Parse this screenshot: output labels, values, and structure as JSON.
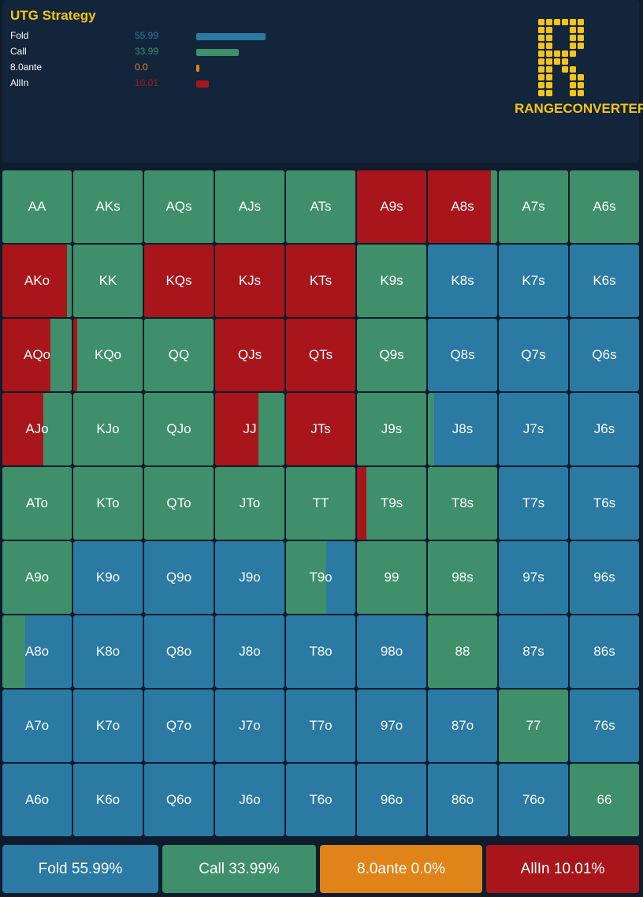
{
  "colors": {
    "fold": "#2a7aa3",
    "call": "#3e8f6a",
    "ante": "#e08419",
    "allin": "#a8161b",
    "title": "#f5c419"
  },
  "header": {
    "title": "UTG Strategy",
    "legend": [
      {
        "name": "Fold",
        "value": "55.99",
        "pct": 55.99,
        "color": "#2a7aa3"
      },
      {
        "name": "Call",
        "value": "33.99",
        "pct": 33.99,
        "color": "#3e8f6a"
      },
      {
        "name": "8.0ante",
        "value": "0.0",
        "pct": 0.0,
        "color": "#e08419"
      },
      {
        "name": "AllIn",
        "value": "10.01",
        "pct": 10.01,
        "color": "#a8161b"
      }
    ]
  },
  "logo": {
    "icon": "letter-r-dot-matrix-logo",
    "text": "RANGECONVERTER"
  },
  "grid": {
    "rows": [
      [
        {
          "hand": "AA",
          "allin": 0,
          "call": 100
        },
        {
          "hand": "AKs",
          "allin": 0,
          "call": 100
        },
        {
          "hand": "AQs",
          "allin": 0,
          "call": 100
        },
        {
          "hand": "AJs",
          "allin": 0,
          "call": 100
        },
        {
          "hand": "ATs",
          "allin": 0,
          "call": 100
        },
        {
          "hand": "A9s",
          "allin": 100,
          "call": 0
        },
        {
          "hand": "A8s",
          "allin": 91,
          "call": 9
        },
        {
          "hand": "A7s",
          "allin": 0,
          "call": 100
        },
        {
          "hand": "A6s",
          "allin": 0,
          "call": 100
        }
      ],
      [
        {
          "hand": "AKo",
          "allin": 93,
          "call": 7
        },
        {
          "hand": "KK",
          "allin": 0,
          "call": 100
        },
        {
          "hand": "KQs",
          "allin": 100,
          "call": 0
        },
        {
          "hand": "KJs",
          "allin": 100,
          "call": 0
        },
        {
          "hand": "KTs",
          "allin": 100,
          "call": 0
        },
        {
          "hand": "K9s",
          "allin": 0,
          "call": 100
        },
        {
          "hand": "K8s",
          "allin": 0,
          "call": 0
        },
        {
          "hand": "K7s",
          "allin": 0,
          "call": 0
        },
        {
          "hand": "K6s",
          "allin": 0,
          "call": 0
        }
      ],
      [
        {
          "hand": "AQo",
          "allin": 69,
          "call": 31
        },
        {
          "hand": "KQo",
          "allin": 6,
          "call": 94
        },
        {
          "hand": "QQ",
          "allin": 0,
          "call": 100
        },
        {
          "hand": "QJs",
          "allin": 100,
          "call": 0
        },
        {
          "hand": "QTs",
          "allin": 100,
          "call": 0
        },
        {
          "hand": "Q9s",
          "allin": 0,
          "call": 100
        },
        {
          "hand": "Q8s",
          "allin": 0,
          "call": 0
        },
        {
          "hand": "Q7s",
          "allin": 0,
          "call": 0
        },
        {
          "hand": "Q6s",
          "allin": 0,
          "call": 0
        }
      ],
      [
        {
          "hand": "AJo",
          "allin": 59,
          "call": 41
        },
        {
          "hand": "KJo",
          "allin": 0,
          "call": 100
        },
        {
          "hand": "QJo",
          "allin": 0,
          "call": 100
        },
        {
          "hand": "JJ",
          "allin": 63,
          "call": 37
        },
        {
          "hand": "JTs",
          "allin": 100,
          "call": 0
        },
        {
          "hand": "J9s",
          "allin": 0,
          "call": 100
        },
        {
          "hand": "J8s",
          "allin": 0,
          "call": 9
        },
        {
          "hand": "J7s",
          "allin": 0,
          "call": 0
        },
        {
          "hand": "J6s",
          "allin": 0,
          "call": 0
        }
      ],
      [
        {
          "hand": "ATo",
          "allin": 0,
          "call": 100
        },
        {
          "hand": "KTo",
          "allin": 0,
          "call": 100
        },
        {
          "hand": "QTo",
          "allin": 0,
          "call": 100
        },
        {
          "hand": "JTo",
          "allin": 0,
          "call": 100
        },
        {
          "hand": "TT",
          "allin": 0,
          "call": 100
        },
        {
          "hand": "T9s",
          "allin": 14,
          "call": 86
        },
        {
          "hand": "T8s",
          "allin": 0,
          "call": 100
        },
        {
          "hand": "T7s",
          "allin": 0,
          "call": 0
        },
        {
          "hand": "T6s",
          "allin": 0,
          "call": 0
        }
      ],
      [
        {
          "hand": "A9o",
          "allin": 0,
          "call": 100
        },
        {
          "hand": "K9o",
          "allin": 0,
          "call": 0
        },
        {
          "hand": "Q9o",
          "allin": 0,
          "call": 0
        },
        {
          "hand": "J9o",
          "allin": 0,
          "call": 0
        },
        {
          "hand": "T9o",
          "allin": 0,
          "call": 58
        },
        {
          "hand": "99",
          "allin": 0,
          "call": 100
        },
        {
          "hand": "98s",
          "allin": 0,
          "call": 100
        },
        {
          "hand": "97s",
          "allin": 0,
          "call": 0
        },
        {
          "hand": "96s",
          "allin": 0,
          "call": 0
        }
      ],
      [
        {
          "hand": "A8o",
          "allin": 0,
          "call": 33
        },
        {
          "hand": "K8o",
          "allin": 0,
          "call": 0
        },
        {
          "hand": "Q8o",
          "allin": 0,
          "call": 0
        },
        {
          "hand": "J8o",
          "allin": 0,
          "call": 0
        },
        {
          "hand": "T8o",
          "allin": 0,
          "call": 0
        },
        {
          "hand": "98o",
          "allin": 0,
          "call": 0
        },
        {
          "hand": "88",
          "allin": 0,
          "call": 100
        },
        {
          "hand": "87s",
          "allin": 0,
          "call": 0
        },
        {
          "hand": "86s",
          "allin": 0,
          "call": 0
        }
      ],
      [
        {
          "hand": "A7o",
          "allin": 0,
          "call": 0
        },
        {
          "hand": "K7o",
          "allin": 0,
          "call": 0
        },
        {
          "hand": "Q7o",
          "allin": 0,
          "call": 0
        },
        {
          "hand": "J7o",
          "allin": 0,
          "call": 0
        },
        {
          "hand": "T7o",
          "allin": 0,
          "call": 0
        },
        {
          "hand": "97o",
          "allin": 0,
          "call": 0
        },
        {
          "hand": "87o",
          "allin": 0,
          "call": 0
        },
        {
          "hand": "77",
          "allin": 0,
          "call": 100
        },
        {
          "hand": "76s",
          "allin": 0,
          "call": 0
        }
      ],
      [
        {
          "hand": "A6o",
          "allin": 0,
          "call": 0
        },
        {
          "hand": "K6o",
          "allin": 0,
          "call": 0
        },
        {
          "hand": "Q6o",
          "allin": 0,
          "call": 0
        },
        {
          "hand": "J6o",
          "allin": 0,
          "call": 0
        },
        {
          "hand": "T6o",
          "allin": 0,
          "call": 0
        },
        {
          "hand": "96o",
          "allin": 0,
          "call": 0
        },
        {
          "hand": "86o",
          "allin": 0,
          "call": 0
        },
        {
          "hand": "76o",
          "allin": 0,
          "call": 0
        },
        {
          "hand": "66",
          "allin": 0,
          "call": 100
        }
      ]
    ]
  },
  "footer": {
    "buttons": [
      {
        "label": "Fold 55.99%",
        "color": "#2a7aa3"
      },
      {
        "label": "Call 33.99%",
        "color": "#3e8f6a"
      },
      {
        "label": "8.0ante 0.0%",
        "color": "#e08419"
      },
      {
        "label": "AllIn 10.01%",
        "color": "#a8161b"
      }
    ]
  }
}
